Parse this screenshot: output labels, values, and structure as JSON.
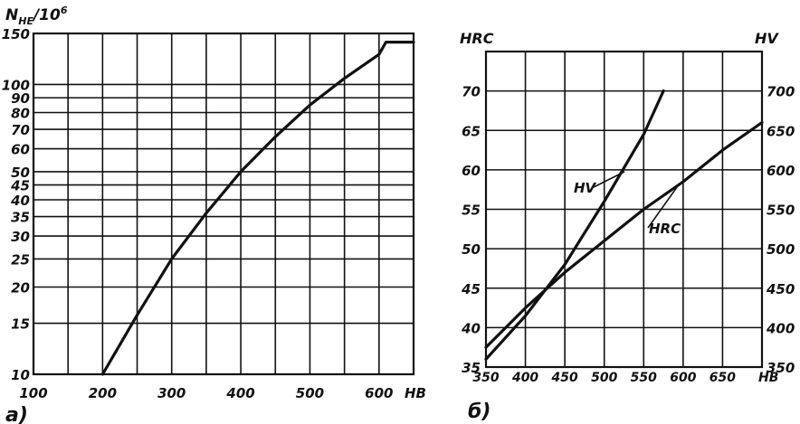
{
  "chart_data": [
    {
      "type": "line",
      "panel_label": "а)",
      "ylabel": "N",
      "ylabel_sub": "HE",
      "ylabel_suffix": "/10",
      "ylabel_exp": "6",
      "xlabel": "HB",
      "x_ticks": [
        100,
        200,
        300,
        400,
        500,
        600
      ],
      "y_ticks": [
        10,
        15,
        20,
        25,
        30,
        35,
        40,
        45,
        50,
        60,
        70,
        80,
        90,
        100,
        150
      ],
      "xlim": [
        100,
        650
      ],
      "ylim": [
        10,
        150
      ],
      "y_scale": "log",
      "grid": true,
      "series": [
        {
          "x": [
            200,
            250,
            300,
            350,
            400,
            450,
            500,
            550,
            600,
            610,
            650
          ],
          "y": [
            10,
            16,
            25,
            36,
            50,
            66,
            85,
            105,
            127,
            140,
            140
          ]
        }
      ]
    },
    {
      "type": "line",
      "panel_label": "б)",
      "ylabel_left": "HRC",
      "ylabel_right": "HV",
      "xlabel": "HB",
      "x_ticks": [
        350,
        400,
        450,
        500,
        550,
        600,
        650
      ],
      "y_ticks_left": [
        35,
        40,
        45,
        50,
        55,
        60,
        65,
        70
      ],
      "y_ticks_right": [
        350,
        400,
        450,
        500,
        550,
        600,
        650,
        700
      ],
      "xlim": [
        350,
        700
      ],
      "ylim_left": [
        35,
        75
      ],
      "ylim_right": [
        350,
        750
      ],
      "grid": true,
      "series": [
        {
          "name": "HV",
          "axis": "right",
          "x": [
            350,
            400,
            450,
            500,
            550,
            575
          ],
          "y": [
            360,
            415,
            480,
            560,
            645,
            700
          ]
        },
        {
          "name": "HRC",
          "axis": "left",
          "x": [
            350,
            400,
            450,
            500,
            550,
            600,
            650,
            700
          ],
          "y": [
            37.5,
            42.5,
            47,
            51,
            55,
            58.5,
            62.5,
            66
          ]
        }
      ]
    }
  ]
}
